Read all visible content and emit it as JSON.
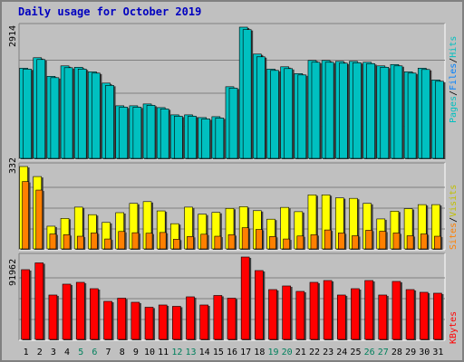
{
  "title": "Daily usage for October 2019",
  "colors": {
    "pages": "#00c0c0",
    "files": "#0080ff",
    "hits": "#00c0c0",
    "sites": "#ff8000",
    "visits": "#ffff00",
    "kbytes": "#ff0000",
    "weekend": "#00805c",
    "weekday": "#000000"
  },
  "labels": {
    "pages": "Pages",
    "files": "Files",
    "hits": "Hits",
    "sites": "Sites",
    "visits": "Visits",
    "kbytes": "KBytes",
    "slash": "/"
  },
  "chart_data": {
    "type": "bar",
    "days": [
      "1",
      "2",
      "3",
      "4",
      "5",
      "6",
      "7",
      "8",
      "9",
      "10",
      "11",
      "12",
      "13",
      "14",
      "15",
      "16",
      "17",
      "18",
      "19",
      "20",
      "21",
      "22",
      "23",
      "24",
      "25",
      "26",
      "27",
      "28",
      "29",
      "30",
      "31"
    ],
    "weekend_days": [
      "5",
      "6",
      "12",
      "13",
      "19",
      "20",
      "26",
      "27"
    ],
    "panels": [
      {
        "max_label": "2914",
        "max": 2914,
        "series": [
          {
            "name": "Hits",
            "values": [
              2010,
              2240,
              1830,
              2060,
              2030,
              1930,
              1680,
              1180,
              1180,
              1220,
              1140,
              980,
              980,
              920,
              940,
              1600,
              2914,
              2320,
              1990,
              2040,
              1890,
              2180,
              2180,
              2160,
              2160,
              2140,
              2060,
              2090,
              1930,
              2010,
              1750
            ]
          },
          {
            "name": "Files",
            "values": [
              1990,
              2200,
              1800,
              2020,
              1990,
              1900,
              1630,
              1150,
              1150,
              1190,
              1110,
              950,
              950,
              890,
              910,
              1570,
              2860,
              2260,
              1960,
              2000,
              1860,
              2140,
              2140,
              2120,
              2130,
              2110,
              2030,
              2060,
              1900,
              1980,
              1720
            ]
          }
        ]
      },
      {
        "max_label": "332",
        "max": 332,
        "series": [
          {
            "name": "Visits",
            "values": [
              332,
              292,
              94,
              125,
              170,
              140,
              109,
              148,
              185,
              192,
              155,
              104,
              170,
              142,
              149,
              165,
              172,
              156,
              122,
              169,
              152,
              219,
              219,
              207,
              205,
              185,
              123,
              154,
              164,
              180,
              180
            ]
          },
          {
            "name": "Sites",
            "values": [
              272,
              238,
              63,
              60,
              54,
              67,
              43,
              73,
              68,
              66,
              69,
              42,
              53,
              62,
              54,
              60,
              88,
              81,
              53,
              43,
              55,
              60,
              79,
              67,
              56,
              78,
              74,
              67,
              56,
              63,
              54
            ]
          }
        ]
      },
      {
        "max_label": "91962",
        "max": 91962,
        "series": [
          {
            "name": "KBytes",
            "values": [
              78000,
              85500,
              50000,
              62000,
              64000,
              57000,
              43000,
              46500,
              42000,
              36500,
              39000,
              37500,
              48000,
              39000,
              49500,
              46500,
              91962,
              77000,
              56000,
              60000,
              54000,
              64000,
              66000,
              50000,
              57000,
              66000,
              50000,
              65000,
              56000,
              53000,
              52000
            ]
          }
        ]
      }
    ]
  }
}
